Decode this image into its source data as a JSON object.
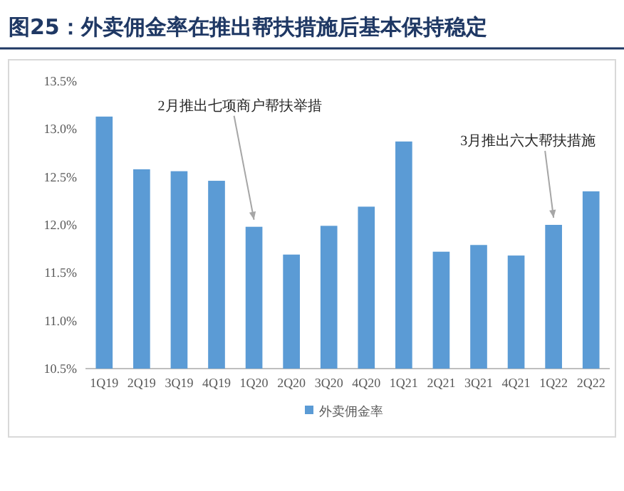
{
  "chart_data": {
    "type": "bar",
    "title": "图25：外卖佣金率在推出帮扶措施后基本保持稳定",
    "categories": [
      "1Q19",
      "2Q19",
      "3Q19",
      "4Q19",
      "1Q20",
      "2Q20",
      "3Q20",
      "4Q20",
      "1Q21",
      "2Q21",
      "3Q21",
      "4Q21",
      "1Q22",
      "2Q22"
    ],
    "series": [
      {
        "name": "外卖佣金率",
        "color": "#5b9bd5",
        "values": [
          13.13,
          12.58,
          12.56,
          12.46,
          11.98,
          11.69,
          11.99,
          12.19,
          12.87,
          11.72,
          11.79,
          11.68,
          12.0,
          12.35
        ]
      }
    ],
    "ylim": [
      10.5,
      13.5
    ],
    "yticks": [
      {
        "value": 10.5,
        "label": "10.5%"
      },
      {
        "value": 11.0,
        "label": "11.0%"
      },
      {
        "value": 11.5,
        "label": "11.5%"
      },
      {
        "value": 12.0,
        "label": "12.0%"
      },
      {
        "value": 12.5,
        "label": "12.5%"
      },
      {
        "value": 13.0,
        "label": "13.0%"
      },
      {
        "value": 13.5,
        "label": "13.5%"
      }
    ],
    "annotations": [
      {
        "text": "2月推出七项商户帮扶举措",
        "x": "1Q20",
        "y": 11.98
      },
      {
        "text": "3月推出六大帮扶措施",
        "x": "1Q22",
        "y": 12.0
      }
    ],
    "legend": "bottom",
    "grid": false
  }
}
